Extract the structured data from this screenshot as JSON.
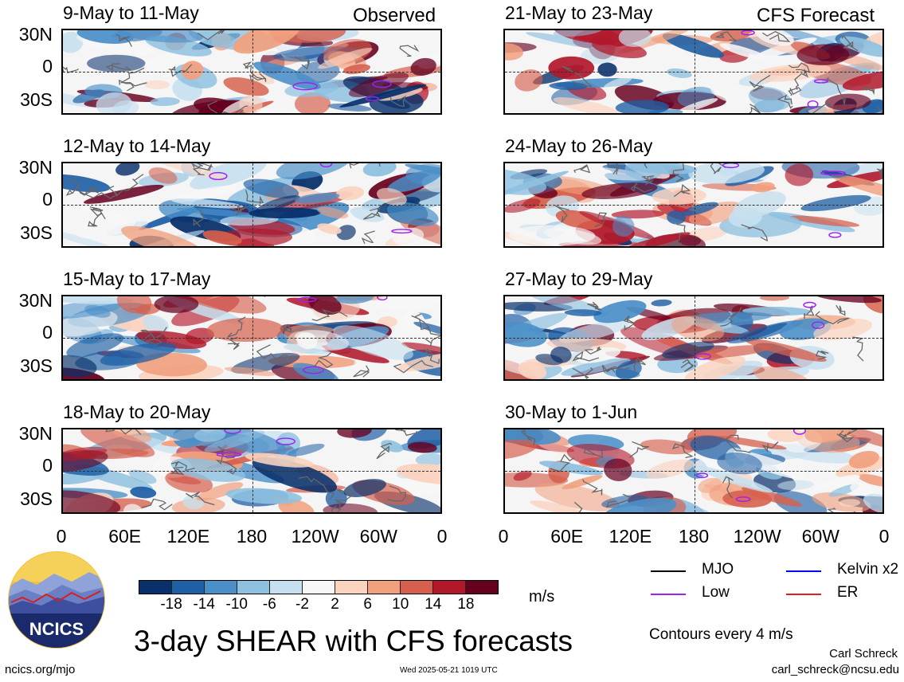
{
  "header": {
    "observed_label": "Observed",
    "forecast_label": "CFS Forecast"
  },
  "panels": [
    {
      "title": "9-May to 11-May",
      "seed": 3
    },
    {
      "title": "12-May to 14-May",
      "seed": 11
    },
    {
      "title": "15-May to 17-May",
      "seed": 23
    },
    {
      "title": "18-May to 20-May",
      "seed": 37
    },
    {
      "title": "21-May to 23-May",
      "seed": 41
    },
    {
      "title": "24-May to 26-May",
      "seed": 53
    },
    {
      "title": "27-May to 29-May",
      "seed": 67
    },
    {
      "title": "30-May to 1-Jun",
      "seed": 79
    }
  ],
  "chart_data": {
    "type": "heatmap",
    "title": "3-day SHEAR with CFS forecasts",
    "y_ticks": [
      "30N",
      "0",
      "30S"
    ],
    "x_ticks": [
      "0",
      "60E",
      "120E",
      "180",
      "120W",
      "60W",
      "0"
    ],
    "colorbar": {
      "unit": "m/s",
      "tick_labels": [
        "-18",
        "-14",
        "-10",
        "-6",
        "-2",
        "2",
        "6",
        "10",
        "14",
        "18"
      ],
      "colors": [
        "#08306b",
        "#1f5fa5",
        "#4a8fc8",
        "#8ec0e0",
        "#c7e0ef",
        "#f7f7f7",
        "#fbd3bf",
        "#f1a07e",
        "#d6604d",
        "#b2182b",
        "#67001f"
      ]
    },
    "legend": [
      {
        "label": "MJO",
        "color": "#000000"
      },
      {
        "label": "Kelvin x2",
        "color": "#0000ee"
      },
      {
        "label": "Low",
        "color": "#a020f0"
      },
      {
        "label": "ER",
        "color": "#e02020"
      }
    ],
    "contour_note": "Contours every 4 m/s"
  },
  "footer": {
    "logo_text": "NCICS",
    "site": "ncics.org/mjo",
    "timestamp": "Wed 2025-05-21 1019 UTC",
    "author": "Carl Schreck",
    "email": "carl_schreck@ncsu.edu"
  }
}
